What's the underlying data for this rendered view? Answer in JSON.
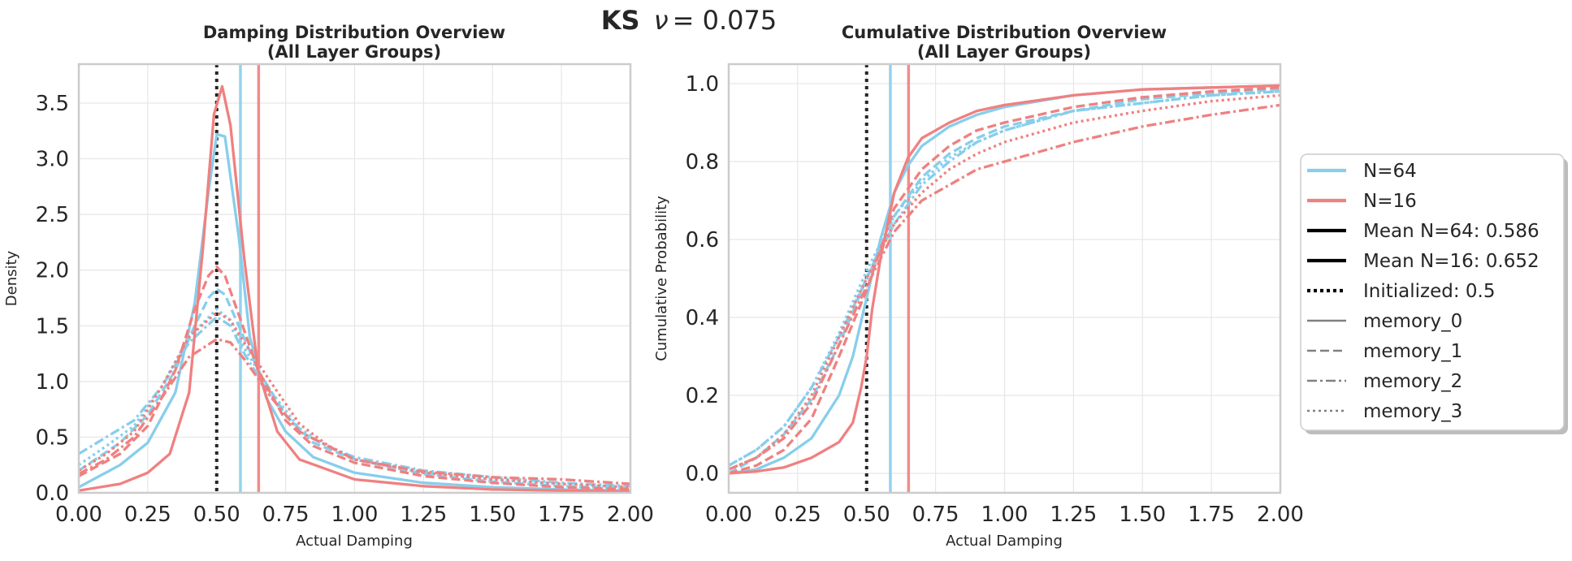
{
  "suptitle": {
    "bold": "KS",
    "nu_symbol": "ν",
    "equals": " = 0.075"
  },
  "colors": {
    "N64": "#87CEEB",
    "N16": "#F08080",
    "init": "#262626",
    "grid": "#e6e6e6",
    "spine": "#cccccc",
    "legend_neutral": "#808080"
  },
  "legend": {
    "placement": "right of right subplot, outside",
    "items": [
      {
        "label": "N=64",
        "style": "solid",
        "color": "#87CEEB"
      },
      {
        "label": "N=16",
        "style": "solid",
        "color": "#F08080"
      },
      {
        "label": "Mean N=64: 0.586",
        "style": "solid",
        "color": "#000000"
      },
      {
        "label": "Mean N=16: 0.652",
        "style": "solid",
        "color": "#000000"
      },
      {
        "label": "Initialized: 0.5",
        "style": "dotted",
        "color": "#000000"
      },
      {
        "label": "memory_0",
        "style": "solid",
        "color": "#808080"
      },
      {
        "label": "memory_1",
        "style": "dashed",
        "color": "#808080"
      },
      {
        "label": "memory_2",
        "style": "dashdot",
        "color": "#808080"
      },
      {
        "label": "memory_3",
        "style": "dotted",
        "color": "#808080"
      }
    ]
  },
  "chart_data": [
    {
      "type": "line",
      "title_line1": "Damping Distribution Overview",
      "title_line2": "(All Layer Groups)",
      "xlabel": "Actual Damping",
      "ylabel": "Density",
      "xlim": [
        0,
        2
      ],
      "ylim": [
        0,
        3.85
      ],
      "xticks": [
        0,
        0.25,
        0.5,
        0.75,
        1.0,
        1.25,
        1.5,
        1.75,
        2.0
      ],
      "xtick_labels": [
        "0.00",
        "0.25",
        "0.50",
        "0.75",
        "1.00",
        "1.25",
        "1.50",
        "1.75",
        "2.00"
      ],
      "yticks": [
        0,
        0.5,
        1.0,
        1.5,
        2.0,
        2.5,
        3.0,
        3.5
      ],
      "ytick_labels": [
        "0.0",
        "0.5",
        "1.0",
        "1.5",
        "2.0",
        "2.5",
        "3.0",
        "3.5"
      ],
      "grid": true,
      "vlines": [
        {
          "x": 0.5,
          "color": "#262626",
          "style": "dotted"
        },
        {
          "x": 0.586,
          "color": "#87CEEB",
          "style": "solid"
        },
        {
          "x": 0.652,
          "color": "#F08080",
          "style": "solid"
        }
      ],
      "series": [
        {
          "color": "#87CEEB",
          "style": "solid",
          "x": [
            0,
            0.15,
            0.25,
            0.35,
            0.42,
            0.47,
            0.5,
            0.53,
            0.58,
            0.62,
            0.68,
            0.75,
            0.85,
            1.0,
            1.25,
            1.5,
            1.75,
            2.0
          ],
          "y": [
            0.05,
            0.25,
            0.45,
            0.9,
            1.7,
            2.7,
            3.22,
            3.2,
            2.3,
            1.4,
            0.85,
            0.55,
            0.32,
            0.18,
            0.09,
            0.05,
            0.03,
            0.02
          ]
        },
        {
          "color": "#87CEEB",
          "style": "dashed",
          "x": [
            0,
            0.15,
            0.25,
            0.35,
            0.42,
            0.47,
            0.5,
            0.53,
            0.58,
            0.65,
            0.75,
            0.85,
            1.0,
            1.25,
            1.5,
            1.75,
            2.0
          ],
          "y": [
            0.2,
            0.45,
            0.7,
            1.1,
            1.5,
            1.75,
            1.83,
            1.78,
            1.5,
            1.1,
            0.7,
            0.45,
            0.3,
            0.17,
            0.1,
            0.06,
            0.04
          ]
        },
        {
          "color": "#87CEEB",
          "style": "dashdot",
          "x": [
            0,
            0.1,
            0.2,
            0.3,
            0.4,
            0.5,
            0.55,
            0.6,
            0.7,
            0.8,
            0.9,
            1.0,
            1.25,
            1.5,
            1.75,
            2.0
          ],
          "y": [
            0.35,
            0.5,
            0.65,
            0.95,
            1.35,
            1.58,
            1.5,
            1.25,
            0.85,
            0.55,
            0.42,
            0.32,
            0.2,
            0.14,
            0.09,
            0.06
          ]
        },
        {
          "color": "#87CEEB",
          "style": "dotted",
          "x": [
            0,
            0.1,
            0.2,
            0.3,
            0.4,
            0.5,
            0.55,
            0.6,
            0.7,
            0.8,
            0.9,
            1.0,
            1.25,
            1.5,
            1.75,
            2.0
          ],
          "y": [
            0.25,
            0.42,
            0.6,
            0.95,
            1.4,
            1.65,
            1.55,
            1.3,
            0.9,
            0.58,
            0.42,
            0.3,
            0.18,
            0.12,
            0.08,
            0.05
          ]
        },
        {
          "color": "#F08080",
          "style": "solid",
          "x": [
            0,
            0.15,
            0.25,
            0.33,
            0.4,
            0.45,
            0.49,
            0.52,
            0.55,
            0.6,
            0.65,
            0.72,
            0.8,
            1.0,
            1.25,
            1.5,
            1.75,
            2.0
          ],
          "y": [
            0.02,
            0.08,
            0.18,
            0.35,
            0.9,
            2.2,
            3.4,
            3.65,
            3.3,
            2.1,
            1.1,
            0.55,
            0.3,
            0.12,
            0.06,
            0.03,
            0.02,
            0.01
          ]
        },
        {
          "color": "#F08080",
          "style": "dashed",
          "x": [
            0,
            0.15,
            0.25,
            0.35,
            0.42,
            0.47,
            0.5,
            0.53,
            0.58,
            0.65,
            0.75,
            0.85,
            1.0,
            1.25,
            1.5,
            1.75,
            2.0
          ],
          "y": [
            0.15,
            0.35,
            0.6,
            1.1,
            1.65,
            1.95,
            2.03,
            1.95,
            1.6,
            1.1,
            0.65,
            0.42,
            0.27,
            0.15,
            0.09,
            0.05,
            0.03
          ]
        },
        {
          "color": "#F08080",
          "style": "dashdot",
          "x": [
            0,
            0.1,
            0.2,
            0.3,
            0.4,
            0.5,
            0.55,
            0.6,
            0.7,
            0.8,
            1.0,
            1.25,
            1.5,
            1.75,
            2.0
          ],
          "y": [
            0.17,
            0.3,
            0.5,
            0.85,
            1.22,
            1.38,
            1.35,
            1.2,
            0.85,
            0.55,
            0.3,
            0.19,
            0.14,
            0.12,
            0.08
          ]
        },
        {
          "color": "#F08080",
          "style": "dotted",
          "x": [
            0,
            0.1,
            0.2,
            0.3,
            0.4,
            0.5,
            0.55,
            0.6,
            0.7,
            0.8,
            0.9,
            1.0,
            1.25,
            1.5,
            1.75,
            2.0
          ],
          "y": [
            0.2,
            0.35,
            0.55,
            0.95,
            1.4,
            1.62,
            1.55,
            1.35,
            0.98,
            0.62,
            0.43,
            0.3,
            0.18,
            0.12,
            0.08,
            0.05
          ]
        }
      ]
    },
    {
      "type": "line",
      "title_line1": "Cumulative Distribution Overview",
      "title_line2": "(All Layer Groups)",
      "xlabel": "Actual Damping",
      "ylabel": "Cumulative Probability",
      "xlim": [
        0,
        2
      ],
      "ylim": [
        -0.05,
        1.05
      ],
      "xticks": [
        0,
        0.25,
        0.5,
        0.75,
        1.0,
        1.25,
        1.5,
        1.75,
        2.0
      ],
      "xtick_labels": [
        "0.00",
        "0.25",
        "0.50",
        "0.75",
        "1.00",
        "1.25",
        "1.50",
        "1.75",
        "2.00"
      ],
      "yticks": [
        0,
        0.2,
        0.4,
        0.6,
        0.8,
        1.0
      ],
      "ytick_labels": [
        "0.0",
        "0.2",
        "0.4",
        "0.6",
        "0.8",
        "1.0"
      ],
      "grid": true,
      "vlines": [
        {
          "x": 0.5,
          "color": "#262626",
          "style": "dotted"
        },
        {
          "x": 0.586,
          "color": "#87CEEB",
          "style": "solid"
        },
        {
          "x": 0.652,
          "color": "#F08080",
          "style": "solid"
        }
      ],
      "series": [
        {
          "color": "#87CEEB",
          "style": "solid",
          "x": [
            0,
            0.1,
            0.2,
            0.3,
            0.4,
            0.45,
            0.5,
            0.55,
            0.6,
            0.65,
            0.7,
            0.8,
            0.9,
            1.0,
            1.25,
            1.5,
            1.75,
            2.0
          ],
          "y": [
            0.0,
            0.01,
            0.04,
            0.09,
            0.2,
            0.3,
            0.45,
            0.6,
            0.72,
            0.79,
            0.84,
            0.89,
            0.92,
            0.94,
            0.97,
            0.985,
            0.99,
            0.995
          ]
        },
        {
          "color": "#87CEEB",
          "style": "dashed",
          "x": [
            0,
            0.1,
            0.2,
            0.3,
            0.4,
            0.5,
            0.6,
            0.7,
            0.8,
            0.9,
            1.0,
            1.25,
            1.5,
            1.75,
            2.0
          ],
          "y": [
            0.0,
            0.04,
            0.1,
            0.19,
            0.33,
            0.5,
            0.66,
            0.76,
            0.82,
            0.86,
            0.89,
            0.93,
            0.96,
            0.975,
            0.985
          ]
        },
        {
          "color": "#87CEEB",
          "style": "dashdot",
          "x": [
            0,
            0.1,
            0.2,
            0.3,
            0.4,
            0.5,
            0.6,
            0.7,
            0.8,
            0.9,
            1.0,
            1.25,
            1.5,
            1.75,
            2.0
          ],
          "y": [
            0.02,
            0.06,
            0.12,
            0.22,
            0.35,
            0.5,
            0.64,
            0.74,
            0.8,
            0.85,
            0.88,
            0.93,
            0.95,
            0.97,
            0.98
          ]
        },
        {
          "color": "#87CEEB",
          "style": "dotted",
          "x": [
            0,
            0.1,
            0.2,
            0.3,
            0.4,
            0.5,
            0.6,
            0.7,
            0.8,
            0.9,
            1.0,
            1.25,
            1.5,
            1.75,
            2.0
          ],
          "y": [
            0.02,
            0.06,
            0.12,
            0.22,
            0.36,
            0.52,
            0.66,
            0.75,
            0.81,
            0.85,
            0.88,
            0.93,
            0.95,
            0.97,
            0.98
          ]
        },
        {
          "color": "#F08080",
          "style": "solid",
          "x": [
            0,
            0.1,
            0.2,
            0.3,
            0.4,
            0.45,
            0.48,
            0.5,
            0.52,
            0.55,
            0.6,
            0.65,
            0.7,
            0.8,
            0.9,
            1.0,
            1.25,
            1.5,
            1.75,
            2.0
          ],
          "y": [
            0.0,
            0.005,
            0.015,
            0.04,
            0.08,
            0.13,
            0.22,
            0.3,
            0.42,
            0.55,
            0.72,
            0.81,
            0.86,
            0.9,
            0.93,
            0.945,
            0.97,
            0.985,
            0.99,
            0.995
          ]
        },
        {
          "color": "#F08080",
          "style": "dashed",
          "x": [
            0,
            0.1,
            0.2,
            0.3,
            0.4,
            0.5,
            0.6,
            0.7,
            0.8,
            0.9,
            1.0,
            1.25,
            1.5,
            1.75,
            2.0
          ],
          "y": [
            0.0,
            0.02,
            0.06,
            0.14,
            0.3,
            0.47,
            0.68,
            0.78,
            0.84,
            0.88,
            0.9,
            0.94,
            0.965,
            0.98,
            0.99
          ]
        },
        {
          "color": "#F08080",
          "style": "dashdot",
          "x": [
            0,
            0.1,
            0.2,
            0.3,
            0.4,
            0.5,
            0.6,
            0.7,
            0.8,
            0.9,
            1.0,
            1.25,
            1.5,
            1.75,
            2.0
          ],
          "y": [
            0.01,
            0.04,
            0.09,
            0.18,
            0.33,
            0.48,
            0.62,
            0.7,
            0.74,
            0.78,
            0.8,
            0.85,
            0.89,
            0.92,
            0.945
          ]
        },
        {
          "color": "#F08080",
          "style": "dotted",
          "x": [
            0,
            0.1,
            0.2,
            0.3,
            0.4,
            0.5,
            0.6,
            0.7,
            0.8,
            0.9,
            1.0,
            1.25,
            1.5,
            1.75,
            2.0
          ],
          "y": [
            0.01,
            0.04,
            0.1,
            0.2,
            0.35,
            0.5,
            0.64,
            0.72,
            0.78,
            0.82,
            0.85,
            0.9,
            0.93,
            0.955,
            0.97
          ]
        }
      ]
    }
  ]
}
